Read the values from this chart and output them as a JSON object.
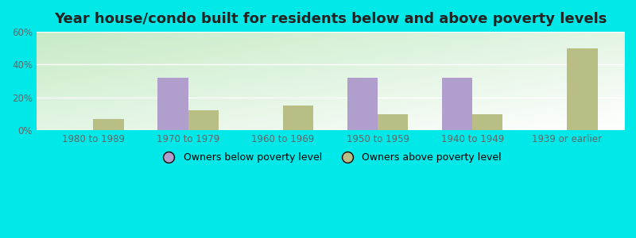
{
  "title": "Year house/condo built for residents below and above poverty levels",
  "categories": [
    "1980 to 1989",
    "1970 to 1979",
    "1960 to 1969",
    "1950 to 1959",
    "1940 to 1949",
    "1939 or earlier"
  ],
  "below_poverty": [
    0,
    32,
    0,
    32,
    32,
    0
  ],
  "above_poverty": [
    7,
    12,
    15,
    10,
    10,
    50
  ],
  "below_color": "#b09fcc",
  "above_color": "#b8be84",
  "ylim": [
    0,
    60
  ],
  "yticks": [
    0,
    20,
    40,
    60
  ],
  "ytick_labels": [
    "0%",
    "20%",
    "40%",
    "60%"
  ],
  "legend_below": "Owners below poverty level",
  "legend_above": "Owners above poverty level",
  "outer_bg": "#00e8e8",
  "title_fontsize": 13,
  "bar_width": 0.32,
  "grid_color": "#ffffff",
  "tick_color": "#666666",
  "bg_left_top": "#c8e6c0",
  "bg_right_bottom": "#f0faf0"
}
